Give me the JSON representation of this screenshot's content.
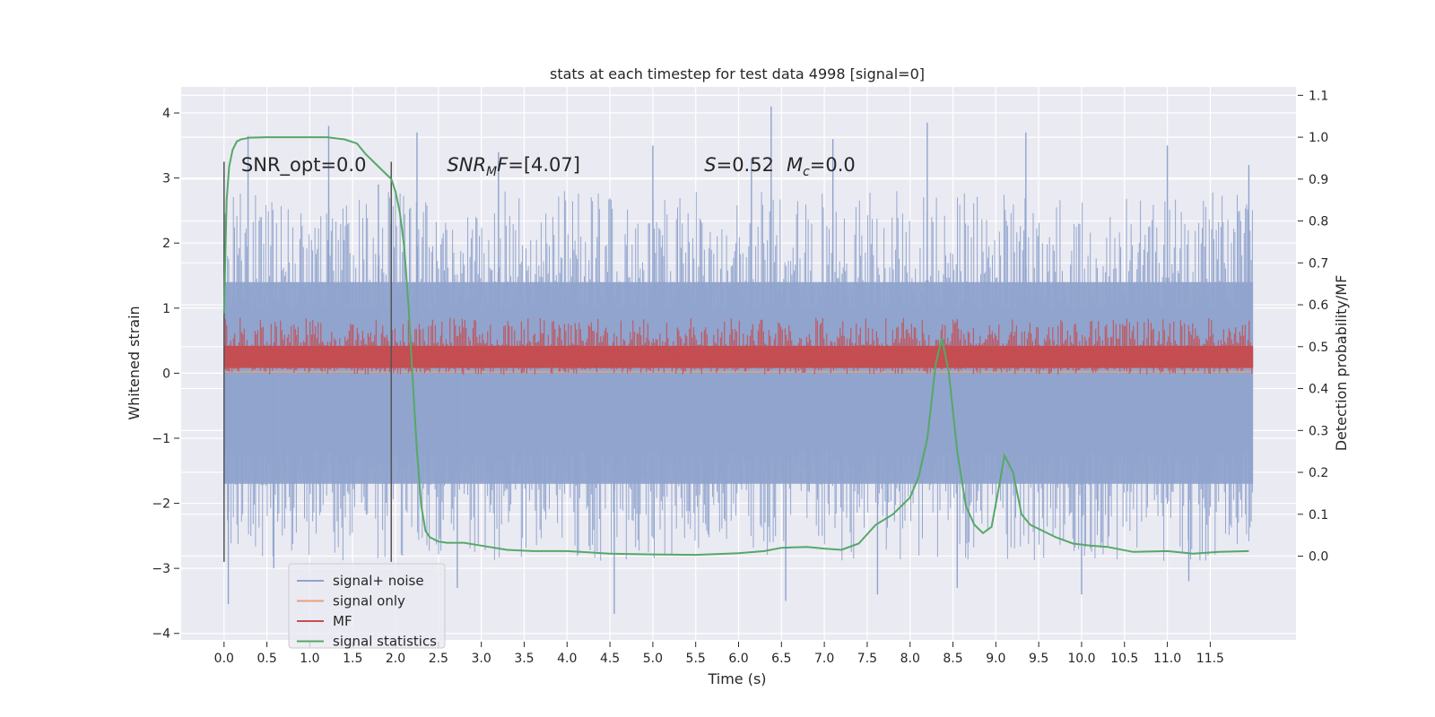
{
  "chart_data": {
    "type": "line",
    "title": "stats at each timestep for test data 4998 [signal=0]",
    "xlabel": "Time (s)",
    "ylabel": "Whitened strain",
    "y2label": "Detection probability/MF",
    "xlim": [
      -0.5,
      12.5
    ],
    "ylim": [
      -4.1,
      4.4
    ],
    "y2lim": [
      -0.2,
      1.12
    ],
    "grid": true,
    "legend_position": "bottom-left",
    "xticks": [
      "0.0",
      "0.5",
      "1.0",
      "1.5",
      "2.0",
      "2.5",
      "3.0",
      "3.5",
      "4.0",
      "4.5",
      "5.0",
      "5.5",
      "6.0",
      "6.5",
      "7.0",
      "7.5",
      "8.0",
      "8.5",
      "9.0",
      "9.5",
      "10.0",
      "10.5",
      "11.0",
      "11.5"
    ],
    "yticks": [
      "4",
      "3",
      "2",
      "1",
      "0",
      "−1",
      "−2",
      "−3",
      "−4"
    ],
    "y2ticks": [
      "1.1",
      "1.0",
      "0.9",
      "0.8",
      "0.7",
      "0.6",
      "0.5",
      "0.4",
      "0.3",
      "0.2",
      "0.1",
      "0.0"
    ],
    "annotations": [
      {
        "name": "snr-opt",
        "text": "SNR_opt=0.0",
        "x": 0.2,
        "y": 3.2
      },
      {
        "name": "snr-mf",
        "text": "SNR",
        "sub": "M",
        "after": "F=[4.07]",
        "italic": true,
        "x": 2.6,
        "y": 3.2
      },
      {
        "name": "stats",
        "text": "S",
        "after": "=0.52",
        "text2": "M",
        "sub2": "c",
        "after2": "=0.0",
        "italic": true,
        "x": 5.6,
        "y": 3.2
      }
    ],
    "vlines": [
      {
        "name": "window-start-line",
        "x": 0.0,
        "ymin": -2.9,
        "ymax": 3.25
      },
      {
        "name": "window-end-line",
        "x": 1.95,
        "ymin": -2.9,
        "ymax": 3.25
      }
    ],
    "legend": [
      {
        "label": "signal+ noise",
        "color": "#8fa3cc"
      },
      {
        "label": "signal only",
        "color": "#e8a07a"
      },
      {
        "label": "MF",
        "color": "#c44e52"
      },
      {
        "label": "signal statistics",
        "color": "#55a868"
      }
    ],
    "noise_envelope": {
      "x_range": [
        0.0,
        12.0
      ],
      "typical_upper": 2.2,
      "typical_lower": -2.3,
      "spikes": [
        {
          "x": 0.05,
          "y": -3.55
        },
        {
          "x": 0.28,
          "y": 3.65
        },
        {
          "x": 0.58,
          "y": -3.0
        },
        {
          "x": 1.22,
          "y": 3.8
        },
        {
          "x": 1.8,
          "y": 2.9
        },
        {
          "x": 2.25,
          "y": 3.7
        },
        {
          "x": 2.72,
          "y": -3.3
        },
        {
          "x": 3.2,
          "y": 3.4
        },
        {
          "x": 4.55,
          "y": -3.7
        },
        {
          "x": 5.0,
          "y": 3.5
        },
        {
          "x": 6.15,
          "y": 3.3
        },
        {
          "x": 6.38,
          "y": 4.1
        },
        {
          "x": 6.55,
          "y": -3.5
        },
        {
          "x": 7.1,
          "y": 3.6
        },
        {
          "x": 7.62,
          "y": -3.4
        },
        {
          "x": 8.2,
          "y": 3.85
        },
        {
          "x": 8.55,
          "y": -3.3
        },
        {
          "x": 9.35,
          "y": 3.7
        },
        {
          "x": 10.0,
          "y": -3.4
        },
        {
          "x": 11.0,
          "y": 3.5
        },
        {
          "x": 11.25,
          "y": -3.2
        },
        {
          "x": 11.95,
          "y": 3.2
        }
      ]
    },
    "series": [
      {
        "name": "signal statistics",
        "axis": "right",
        "x": [
          0.0,
          0.03,
          0.06,
          0.1,
          0.15,
          0.2,
          0.3,
          0.5,
          0.8,
          1.0,
          1.2,
          1.4,
          1.55,
          1.65,
          1.75,
          1.85,
          1.95,
          2.0,
          2.05,
          2.1,
          2.15,
          2.2,
          2.25,
          2.3,
          2.35,
          2.4,
          2.5,
          2.6,
          2.8,
          3.0,
          3.3,
          3.6,
          4.0,
          4.5,
          5.0,
          5.5,
          6.0,
          6.3,
          6.5,
          6.8,
          7.0,
          7.2,
          7.4,
          7.6,
          7.8,
          8.0,
          8.1,
          8.2,
          8.3,
          8.37,
          8.45,
          8.55,
          8.65,
          8.75,
          8.85,
          8.95,
          9.05,
          9.1,
          9.2,
          9.3,
          9.4,
          9.5,
          9.7,
          9.9,
          10.1,
          10.3,
          10.6,
          11.0,
          11.3,
          11.6,
          11.95
        ],
        "values": [
          0.58,
          0.85,
          0.93,
          0.97,
          0.99,
          0.995,
          0.999,
          1.0,
          1.0,
          1.0,
          1.0,
          0.995,
          0.985,
          0.96,
          0.94,
          0.92,
          0.9,
          0.87,
          0.82,
          0.74,
          0.6,
          0.42,
          0.25,
          0.12,
          0.06,
          0.045,
          0.035,
          0.032,
          0.032,
          0.025,
          0.015,
          0.012,
          0.012,
          0.006,
          0.004,
          0.003,
          0.007,
          0.012,
          0.02,
          0.022,
          0.018,
          0.015,
          0.03,
          0.075,
          0.1,
          0.14,
          0.19,
          0.28,
          0.46,
          0.52,
          0.44,
          0.25,
          0.12,
          0.075,
          0.055,
          0.07,
          0.18,
          0.24,
          0.2,
          0.1,
          0.075,
          0.065,
          0.045,
          0.03,
          0.025,
          0.022,
          0.01,
          0.012,
          0.006,
          0.01,
          0.012
        ]
      }
    ]
  }
}
